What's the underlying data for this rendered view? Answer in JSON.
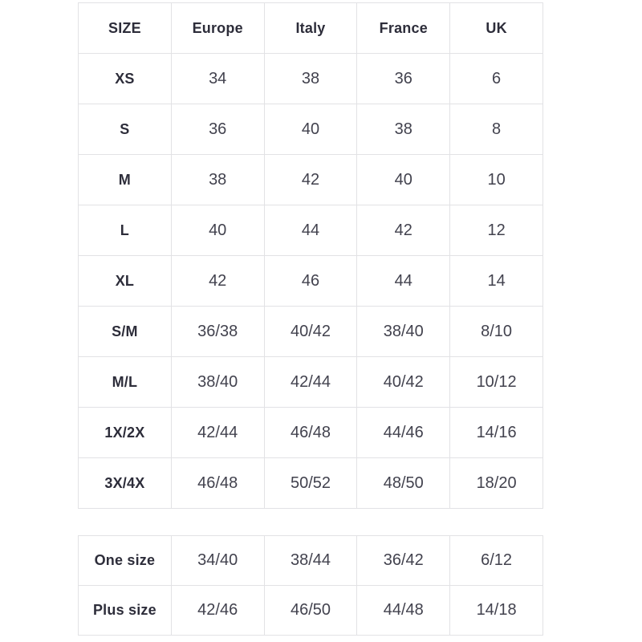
{
  "colors": {
    "background": "#ffffff",
    "border": "#e2e2e5",
    "header-text": "#2d2d3a",
    "cell-text": "#42424e"
  },
  "main_table": {
    "headers": [
      "SIZE",
      "Europe",
      "Italy",
      "France",
      "UK"
    ],
    "rows": [
      {
        "label": "XS",
        "values": [
          "34",
          "38",
          "36",
          "6"
        ]
      },
      {
        "label": "S",
        "values": [
          "36",
          "40",
          "38",
          "8"
        ]
      },
      {
        "label": "M",
        "values": [
          "38",
          "42",
          "40",
          "10"
        ]
      },
      {
        "label": "L",
        "values": [
          "40",
          "44",
          "42",
          "12"
        ]
      },
      {
        "label": "XL",
        "values": [
          "42",
          "46",
          "44",
          "14"
        ]
      },
      {
        "label": "S/M",
        "values": [
          "36/38",
          "40/42",
          "38/40",
          "8/10"
        ]
      },
      {
        "label": "M/L",
        "values": [
          "38/40",
          "42/44",
          "40/42",
          "10/12"
        ]
      },
      {
        "label": "1X/2X",
        "values": [
          "42/44",
          "46/48",
          "44/46",
          "14/16"
        ]
      },
      {
        "label": "3X/4X",
        "values": [
          "46/48",
          "50/52",
          "48/50",
          "18/20"
        ]
      }
    ]
  },
  "secondary_table": {
    "rows": [
      {
        "label": "One size",
        "values": [
          "34/40",
          "38/44",
          "36/42",
          "6/12"
        ]
      },
      {
        "label": "Plus size",
        "values": [
          "42/46",
          "46/50",
          "44/48",
          "14/18"
        ]
      }
    ]
  }
}
